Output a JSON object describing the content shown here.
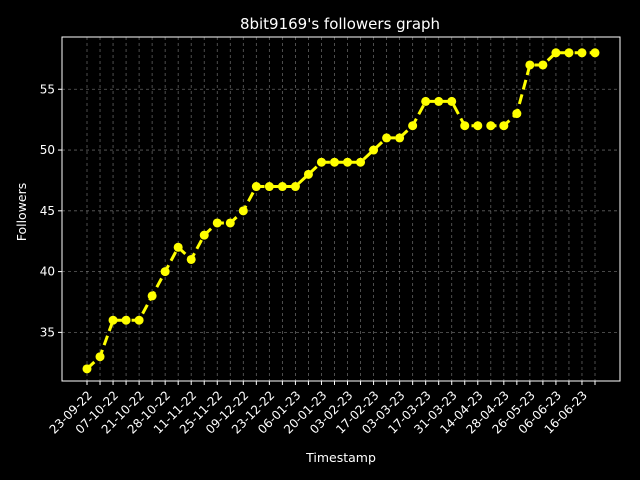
{
  "chart_data": {
    "type": "line",
    "title": "8bit9169's followers graph",
    "xlabel": "Timestamp",
    "ylabel": "Followers",
    "ylim": [
      31,
      59.3
    ],
    "yticks": [
      35,
      40,
      45,
      50,
      55
    ],
    "grid": true,
    "x_tick_labels": [
      "23-09-22",
      "07-10-22",
      "21-10-22",
      "28-10-22",
      "11-11-22",
      "25-11-22",
      "09-12-22",
      "23-12-22",
      "06-01-23",
      "20-01-23",
      "03-02-23",
      "17-02-23",
      "03-03-23",
      "17-03-23",
      "31-03-23",
      "14-04-23",
      "28-04-23",
      "26-05-23",
      "06-06-23",
      "16-06-23"
    ],
    "series": [
      {
        "color": "#ffff00",
        "values": [
          32,
          33,
          36,
          36,
          36,
          38,
          40,
          42,
          41,
          43,
          44,
          44,
          45,
          47,
          47,
          47,
          47,
          48,
          49,
          49,
          49,
          49,
          50,
          51,
          51,
          52,
          54,
          54,
          54,
          52,
          52,
          52,
          52,
          53,
          57,
          57,
          58,
          58,
          58,
          58
        ]
      }
    ]
  }
}
